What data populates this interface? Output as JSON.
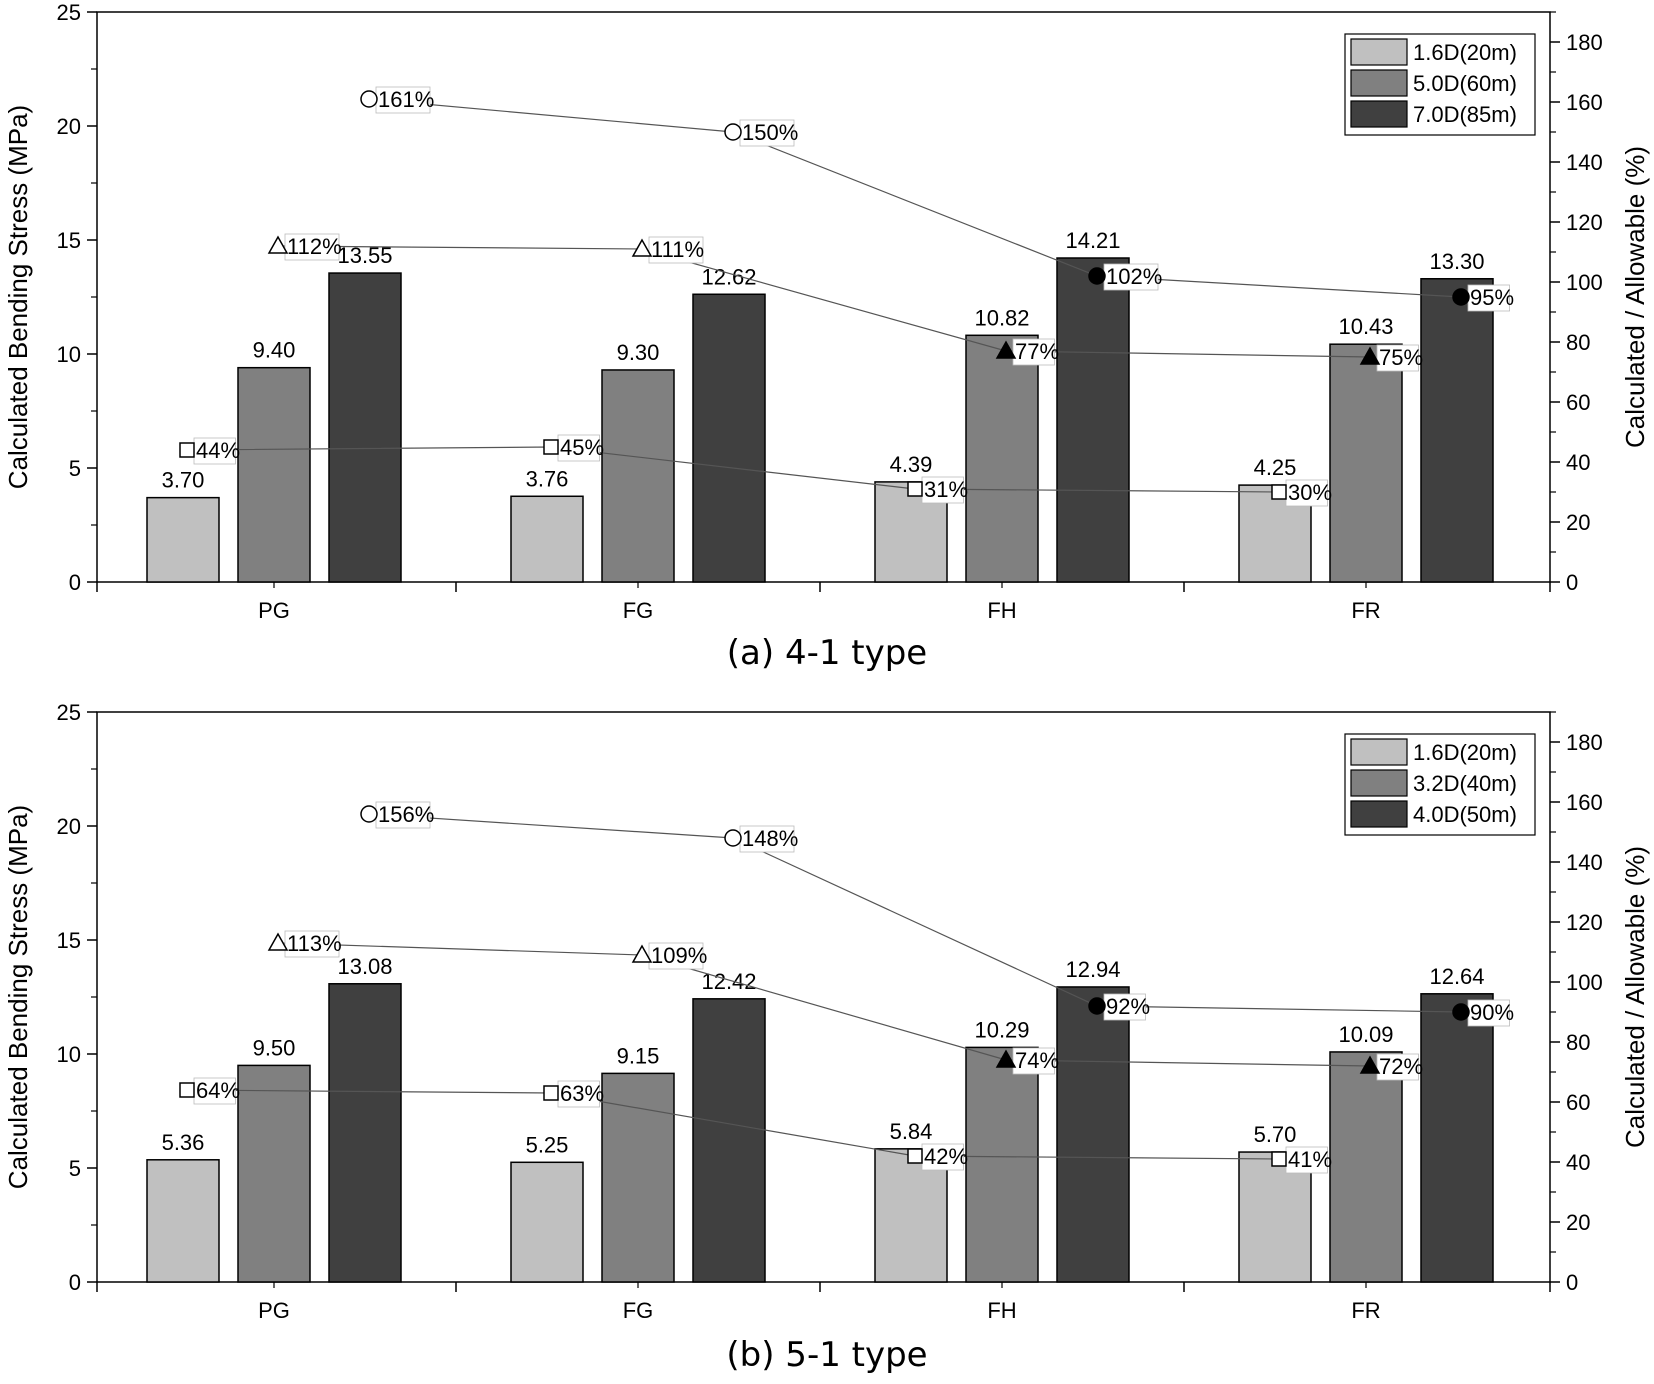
{
  "chart_data": [
    {
      "type": "bar",
      "caption": "(a) 4-1 type",
      "categories": [
        "PG",
        "FG",
        "FH",
        "FR"
      ],
      "ylabel": "Calculated Bending Stress (MPa)",
      "ylabel_right": "Calculated / Allowable (%)",
      "ylim": [
        0,
        25
      ],
      "yticks": [
        "0",
        "5",
        "10",
        "15",
        "20",
        "25"
      ],
      "ylim_right": [
        0,
        190
      ],
      "yticks_right": [
        "0",
        "20",
        "40",
        "60",
        "80",
        "100",
        "120",
        "140",
        "160",
        "180"
      ],
      "legend_position": "top-right",
      "series": [
        {
          "name": "1.6D(20m)",
          "color": "#c0c0c0",
          "values": [
            3.7,
            3.76,
            4.39,
            4.25
          ],
          "labels": [
            "3.70",
            "3.76",
            "4.39",
            "4.25"
          ]
        },
        {
          "name": "5.0D(60m)",
          "color": "#808080",
          "values": [
            9.4,
            9.3,
            10.82,
            10.43
          ],
          "labels": [
            "9.40",
            "9.30",
            "10.82",
            "10.43"
          ]
        },
        {
          "name": "7.0D(85m)",
          "color": "#404040",
          "values": [
            13.55,
            12.62,
            14.21,
            13.3
          ],
          "labels": [
            "13.55",
            "12.62",
            "14.21",
            "13.30"
          ]
        }
      ],
      "ratio_series": [
        {
          "marker": "square",
          "values": [
            44,
            45,
            31,
            30
          ],
          "labels": [
            "44%",
            "45%",
            "31%",
            "30%"
          ]
        },
        {
          "marker": "triangle",
          "values": [
            112,
            111,
            77,
            75
          ],
          "labels": [
            "112%",
            "111%",
            "77%",
            "75%"
          ]
        },
        {
          "marker": "circle",
          "values": [
            161,
            150,
            102,
            95
          ],
          "labels": [
            "161%",
            "150%",
            "102%",
            "95%"
          ]
        }
      ]
    },
    {
      "type": "bar",
      "caption": "(b) 5-1 type",
      "categories": [
        "PG",
        "FG",
        "FH",
        "FR"
      ],
      "ylabel": "Calculated Bending Stress (MPa)",
      "ylabel_right": "Calculated / Allowable (%)",
      "ylim": [
        0,
        25
      ],
      "yticks": [
        "0",
        "5",
        "10",
        "15",
        "20",
        "25"
      ],
      "ylim_right": [
        0,
        190
      ],
      "yticks_right": [
        "0",
        "20",
        "40",
        "60",
        "80",
        "100",
        "120",
        "140",
        "160",
        "180"
      ],
      "legend_position": "top-right",
      "series": [
        {
          "name": "1.6D(20m)",
          "color": "#c0c0c0",
          "values": [
            5.36,
            5.25,
            5.84,
            5.7
          ],
          "labels": [
            "5.36",
            "5.25",
            "5.84",
            "5.70"
          ]
        },
        {
          "name": "3.2D(40m)",
          "color": "#808080",
          "values": [
            9.5,
            9.15,
            10.29,
            10.09
          ],
          "labels": [
            "9.50",
            "9.15",
            "10.29",
            "10.09"
          ]
        },
        {
          "name": "4.0D(50m)",
          "color": "#404040",
          "values": [
            13.08,
            12.42,
            12.94,
            12.64
          ],
          "labels": [
            "13.08",
            "12.42",
            "12.94",
            "12.64"
          ]
        }
      ],
      "ratio_series": [
        {
          "marker": "square",
          "values": [
            64,
            63,
            42,
            41
          ],
          "labels": [
            "64%",
            "63%",
            "42%",
            "41%"
          ]
        },
        {
          "marker": "triangle",
          "values": [
            113,
            109,
            74,
            72
          ],
          "labels": [
            "113%",
            "109%",
            "74%",
            "72%"
          ]
        },
        {
          "marker": "circle",
          "values": [
            156,
            148,
            92,
            90
          ],
          "labels": [
            "156%",
            "148%",
            "92%",
            "90%"
          ]
        }
      ]
    }
  ]
}
